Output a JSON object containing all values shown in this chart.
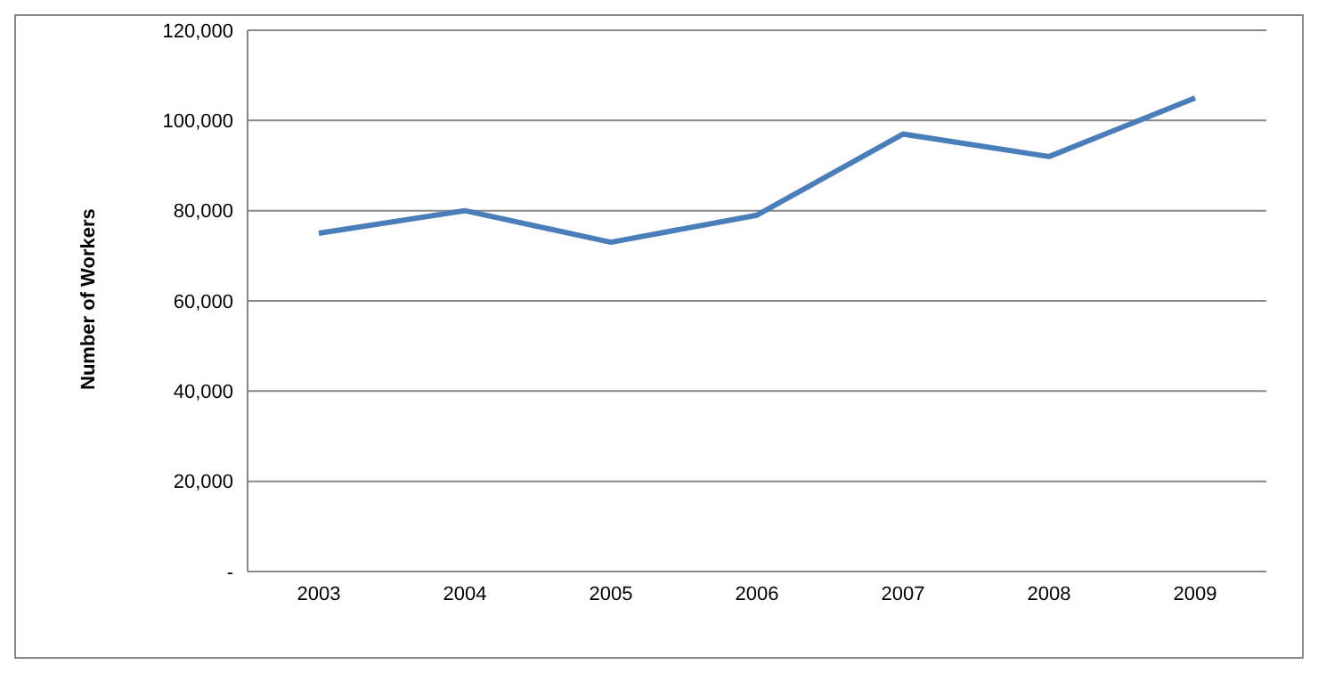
{
  "chart_data": {
    "type": "line",
    "ylabel": "Number of Workers",
    "categories": [
      "2003",
      "2004",
      "2005",
      "2006",
      "2007",
      "2008",
      "2009"
    ],
    "series": [
      {
        "color": "#4a7ebb",
        "values": [
          75000,
          80000,
          73000,
          79000,
          97000,
          92000,
          105000
        ]
      }
    ],
    "ylim": [
      0,
      120000
    ],
    "yticks": [
      {
        "value": 0,
        "label": "-"
      },
      {
        "value": 20000,
        "label": "20,000"
      },
      {
        "value": 40000,
        "label": "40,000"
      },
      {
        "value": 60000,
        "label": "60,000"
      },
      {
        "value": 80000,
        "label": "80,000"
      },
      {
        "value": 100000,
        "label": "100,000"
      },
      {
        "value": 120000,
        "label": "120,000"
      }
    ],
    "grid": "y",
    "legend": false,
    "marker": "none",
    "line_style": "solid"
  }
}
